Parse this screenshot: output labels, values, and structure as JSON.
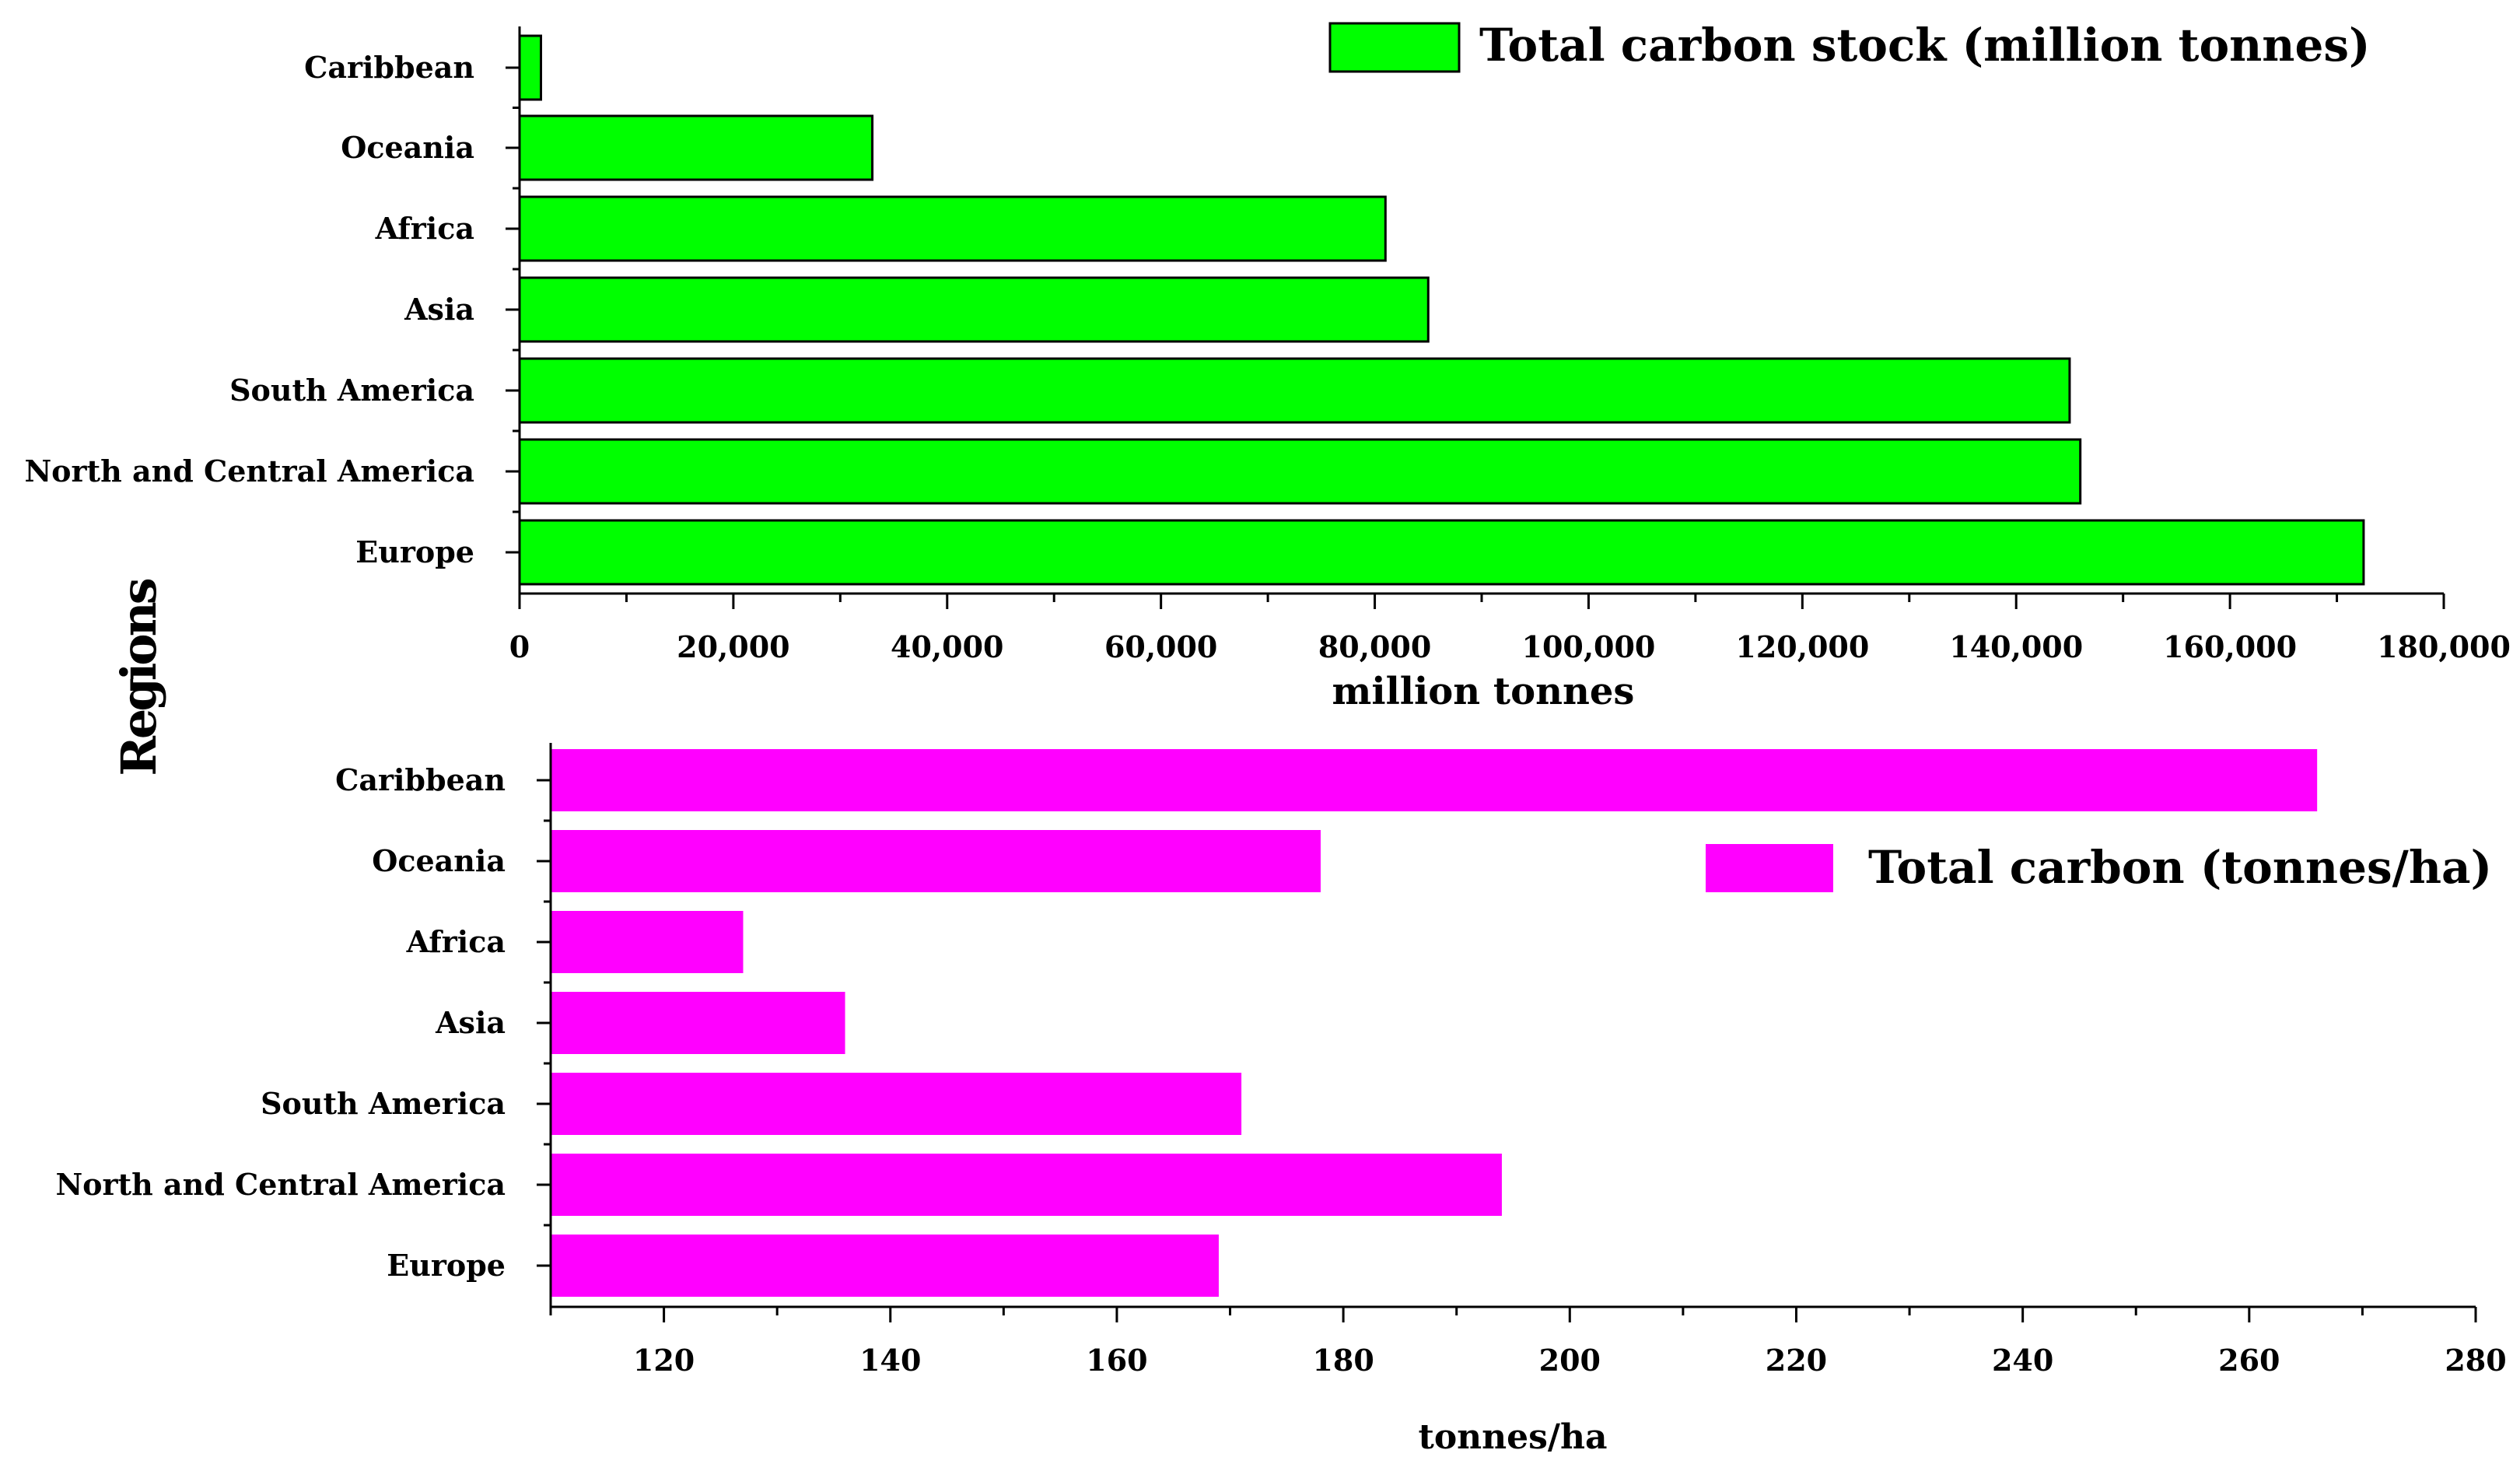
{
  "shared": {
    "ylabel": "Regions"
  },
  "chart_data": [
    {
      "type": "bar",
      "orientation": "horizontal",
      "categories": [
        "Caribbean",
        "Oceania",
        "Africa",
        "Asia",
        "South America",
        "North and Central America",
        "Europe"
      ],
      "series": [
        {
          "name": "Total carbon stock (million tonnes)",
          "values": [
            2000,
            33000,
            81000,
            85000,
            145000,
            146000,
            172500
          ]
        }
      ],
      "xlabel": "million tonnes",
      "xlim": [
        0,
        180000
      ],
      "xticks": [
        0,
        20000,
        40000,
        60000,
        80000,
        100000,
        120000,
        140000,
        160000,
        180000
      ],
      "xtick_labels": [
        "0",
        "20,000",
        "40,000",
        "60,000",
        "80,000",
        "100,000",
        "120,000",
        "140,000",
        "160,000",
        "180,000"
      ],
      "legend_position": "top-right",
      "colors": {
        "bar": "#00ff00",
        "bar_stroke": "#000000"
      }
    },
    {
      "type": "bar",
      "orientation": "horizontal",
      "categories": [
        "Caribbean",
        "Oceania",
        "Africa",
        "Asia",
        "South America",
        "North and Central America",
        "Europe"
      ],
      "series": [
        {
          "name": "Total carbon (tonnes/ha)",
          "values": [
            266,
            178,
            127,
            136,
            171,
            194,
            169
          ]
        }
      ],
      "xlabel": "tonnes/ha",
      "xlim": [
        110,
        280
      ],
      "xticks": [
        120,
        140,
        160,
        180,
        200,
        220,
        240,
        260,
        280
      ],
      "xtick_labels": [
        "120",
        "140",
        "160",
        "180",
        "200",
        "220",
        "240",
        "260",
        "280"
      ],
      "legend_position": "top-right",
      "colors": {
        "bar": "#ff00ff",
        "bar_stroke": "none"
      }
    }
  ]
}
